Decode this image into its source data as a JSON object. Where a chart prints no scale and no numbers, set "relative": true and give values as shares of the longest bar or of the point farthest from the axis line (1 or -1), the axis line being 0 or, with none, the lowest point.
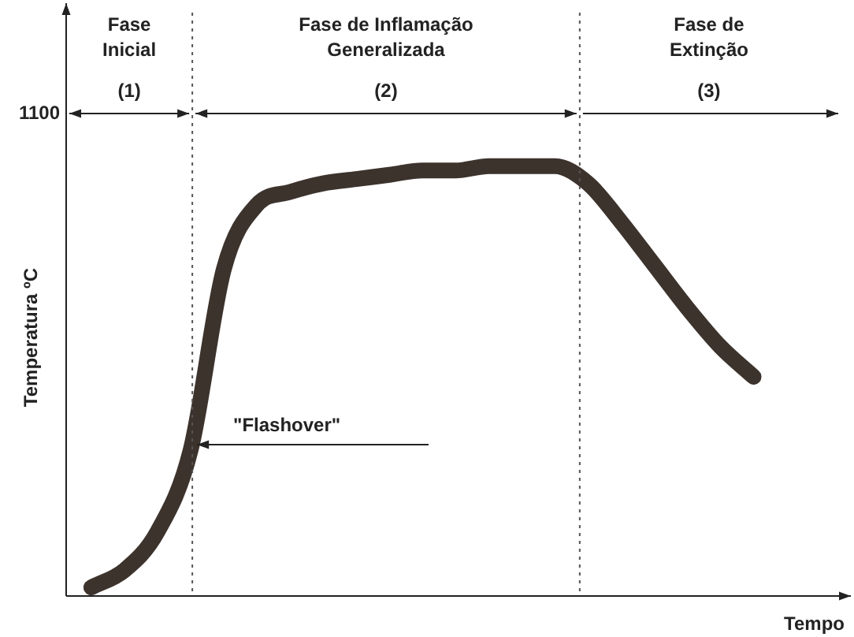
{
  "chart_data": {
    "type": "line",
    "relative": true,
    "ylabel": "Temperatura ºC",
    "xlabel": "Tempo",
    "categories": [
      null,
      null,
      null,
      null,
      null,
      null,
      null,
      null,
      null,
      null,
      null,
      null,
      null,
      null,
      null,
      null,
      null,
      null,
      null,
      null,
      null
    ],
    "series": [
      {
        "color": "#3d332d",
        "values": [
          0.02,
          0.06,
          0.15,
          0.34,
          0.76,
          0.91,
          0.94,
          0.96,
          0.97,
          0.98,
          0.99,
          0.99,
          1.0,
          1.0,
          1.0,
          0.96,
          0.87,
          0.77,
          0.67,
          0.58,
          0.51
        ]
      }
    ],
    "annotations": [
      "Fase\nInicial",
      "(1)",
      "Fase de Inflamação\nGeneralizada",
      "(2)",
      "Fase de\nExtinção",
      "(3)",
      "\"Flashover\"",
      "1100"
    ],
    "legend": false,
    "marker": "none",
    "line_style": "solid"
  }
}
